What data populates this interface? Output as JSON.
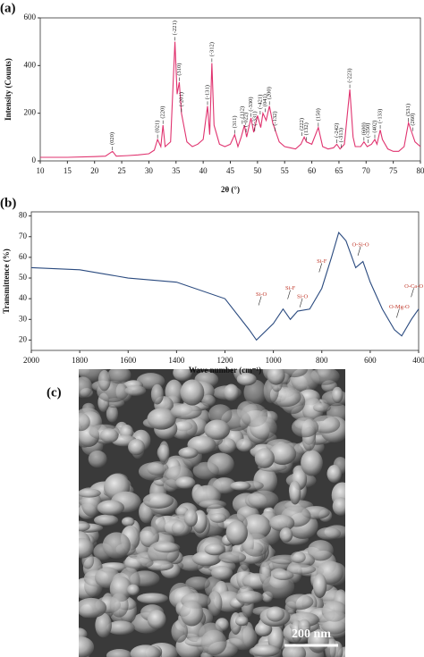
{
  "chart_data": [
    {
      "type": "line",
      "panel_label": "(a)",
      "x_label": "2θ (°)",
      "y_label": "Intensity (Counts)",
      "xlim": [
        10,
        80
      ],
      "xticks": [
        10,
        15,
        20,
        25,
        30,
        35,
        40,
        45,
        50,
        55,
        60,
        65,
        70,
        75,
        80
      ],
      "ylim": [
        0,
        600
      ],
      "yticks": [
        0,
        200,
        400,
        600
      ],
      "x": [
        10,
        15,
        20,
        22,
        23.3,
        24,
        26,
        28,
        30,
        31,
        31.6,
        32.2,
        32.6,
        33,
        34,
        34.8,
        35.2,
        35.6,
        36,
        37,
        38,
        39,
        40,
        40.8,
        41.2,
        41.6,
        42,
        43,
        44,
        45,
        45.8,
        46.4,
        47,
        47.6,
        48,
        48.8,
        49.3,
        50,
        50.6,
        51,
        51.6,
        52.2,
        52.8,
        53.4,
        54,
        55,
        56,
        57,
        58,
        58.6,
        59,
        60,
        61.2,
        62,
        63,
        64,
        64.6,
        65.2,
        66,
        67,
        67.6,
        68,
        69,
        69.6,
        70.2,
        71,
        71.6,
        72,
        72.6,
        73,
        74,
        75,
        76,
        77,
        77.8,
        78.4,
        79,
        80
      ],
      "series": [
        {
          "color": "#e0336f",
          "values": [
            15,
            15,
            18,
            20,
            40,
            20,
            22,
            25,
            30,
            45,
            90,
            60,
            150,
            60,
            80,
            500,
            280,
            330,
            200,
            80,
            60,
            70,
            90,
            230,
            110,
            410,
            150,
            70,
            60,
            70,
            110,
            60,
            100,
            150,
            100,
            180,
            120,
            190,
            140,
            200,
            170,
            230,
            160,
            120,
            80,
            60,
            55,
            50,
            70,
            100,
            80,
            70,
            140,
            60,
            50,
            55,
            70,
            50,
            70,
            300,
            100,
            60,
            60,
            80,
            60,
            70,
            90,
            70,
            130,
            90,
            50,
            40,
            40,
            60,
            160,
            120,
            80,
            60
          ]
        }
      ],
      "annotations": [
        {
          "text": "(020)",
          "x": 23.3,
          "y": 45
        },
        {
          "text": "(021)",
          "x": 31.6,
          "y": 95
        },
        {
          "text": "(220)",
          "x": 32.6,
          "y": 155
        },
        {
          "text": "(-221)",
          "x": 34.8,
          "y": 505
        },
        {
          "text": "(310)",
          "x": 35.6,
          "y": 335
        },
        {
          "text": "(-201)",
          "x": 36,
          "y": 205
        },
        {
          "text": "(-131)",
          "x": 40.8,
          "y": 235
        },
        {
          "text": "(-312)",
          "x": 41.6,
          "y": 415
        },
        {
          "text": "(311)",
          "x": 45.8,
          "y": 115
        },
        {
          "text": "(112)",
          "x": 47.2,
          "y": 155
        },
        {
          "text": "(-022)",
          "x": 47.9,
          "y": 120
        },
        {
          "text": "(-330)",
          "x": 48.8,
          "y": 185
        },
        {
          "text": "(-331)",
          "x": 49.5,
          "y": 125
        },
        {
          "text": "(-421)",
          "x": 50.5,
          "y": 195
        },
        {
          "text": "(041)",
          "x": 51.4,
          "y": 205
        },
        {
          "text": "(200)",
          "x": 52.2,
          "y": 235
        },
        {
          "text": "(-132)",
          "x": 53.2,
          "y": 125
        },
        {
          "text": "(222)",
          "x": 58.2,
          "y": 105
        },
        {
          "text": "(132)",
          "x": 59,
          "y": 85
        },
        {
          "text": "(150)",
          "x": 61.2,
          "y": 145
        },
        {
          "text": "(-242)",
          "x": 64.6,
          "y": 75
        },
        {
          "text": "(-313)",
          "x": 65.4,
          "y": 55
        },
        {
          "text": "(-223)",
          "x": 67,
          "y": 305
        },
        {
          "text": "(600)",
          "x": 69.6,
          "y": 85
        },
        {
          "text": "(-350)",
          "x": 70.4,
          "y": 75
        },
        {
          "text": "(402)",
          "x": 71.6,
          "y": 95
        },
        {
          "text": "(-133)",
          "x": 72.6,
          "y": 135
        },
        {
          "text": "(531)",
          "x": 77.8,
          "y": 165
        },
        {
          "text": "(260)",
          "x": 78.6,
          "y": 125
        }
      ]
    },
    {
      "type": "line",
      "panel_label": "(b)",
      "x_label": "Wave number (cm⁻¹)",
      "y_label": "Transmittence (%)",
      "xlim": [
        2000,
        400
      ],
      "xticks": [
        2000,
        1800,
        1600,
        1400,
        1200,
        1000,
        800,
        600,
        400
      ],
      "ylim": [
        15,
        82
      ],
      "yticks": [
        20,
        30,
        40,
        50,
        60,
        70,
        80
      ],
      "x": [
        2000,
        1800,
        1700,
        1600,
        1400,
        1200,
        1100,
        1070,
        1000,
        960,
        930,
        900,
        850,
        800,
        760,
        730,
        700,
        660,
        630,
        600,
        550,
        500,
        470,
        430,
        400
      ],
      "series": [
        {
          "color": "#2a4a7f",
          "values": [
            55,
            54,
            52,
            50,
            48,
            40,
            25,
            20,
            28,
            35,
            30,
            34,
            35,
            45,
            60,
            72,
            68,
            55,
            58,
            48,
            35,
            25,
            22,
            30,
            35
          ]
        }
      ],
      "annotation_color": "#c0392b",
      "annotations": [
        {
          "text": "Si-O",
          "x": 1050,
          "y": 42
        },
        {
          "text": "Si-F",
          "x": 930,
          "y": 45
        },
        {
          "text": "Si-O",
          "x": 880,
          "y": 41
        },
        {
          "text": "Si-F",
          "x": 800,
          "y": 58
        },
        {
          "text": "O-Si-O",
          "x": 640,
          "y": 66
        },
        {
          "text": "O-Mg-O",
          "x": 480,
          "y": 36
        },
        {
          "text": "O-Ca-O",
          "x": 420,
          "y": 46
        }
      ]
    }
  ],
  "image_panel": {
    "label": "(c)",
    "scale_bar": "200 nm"
  }
}
